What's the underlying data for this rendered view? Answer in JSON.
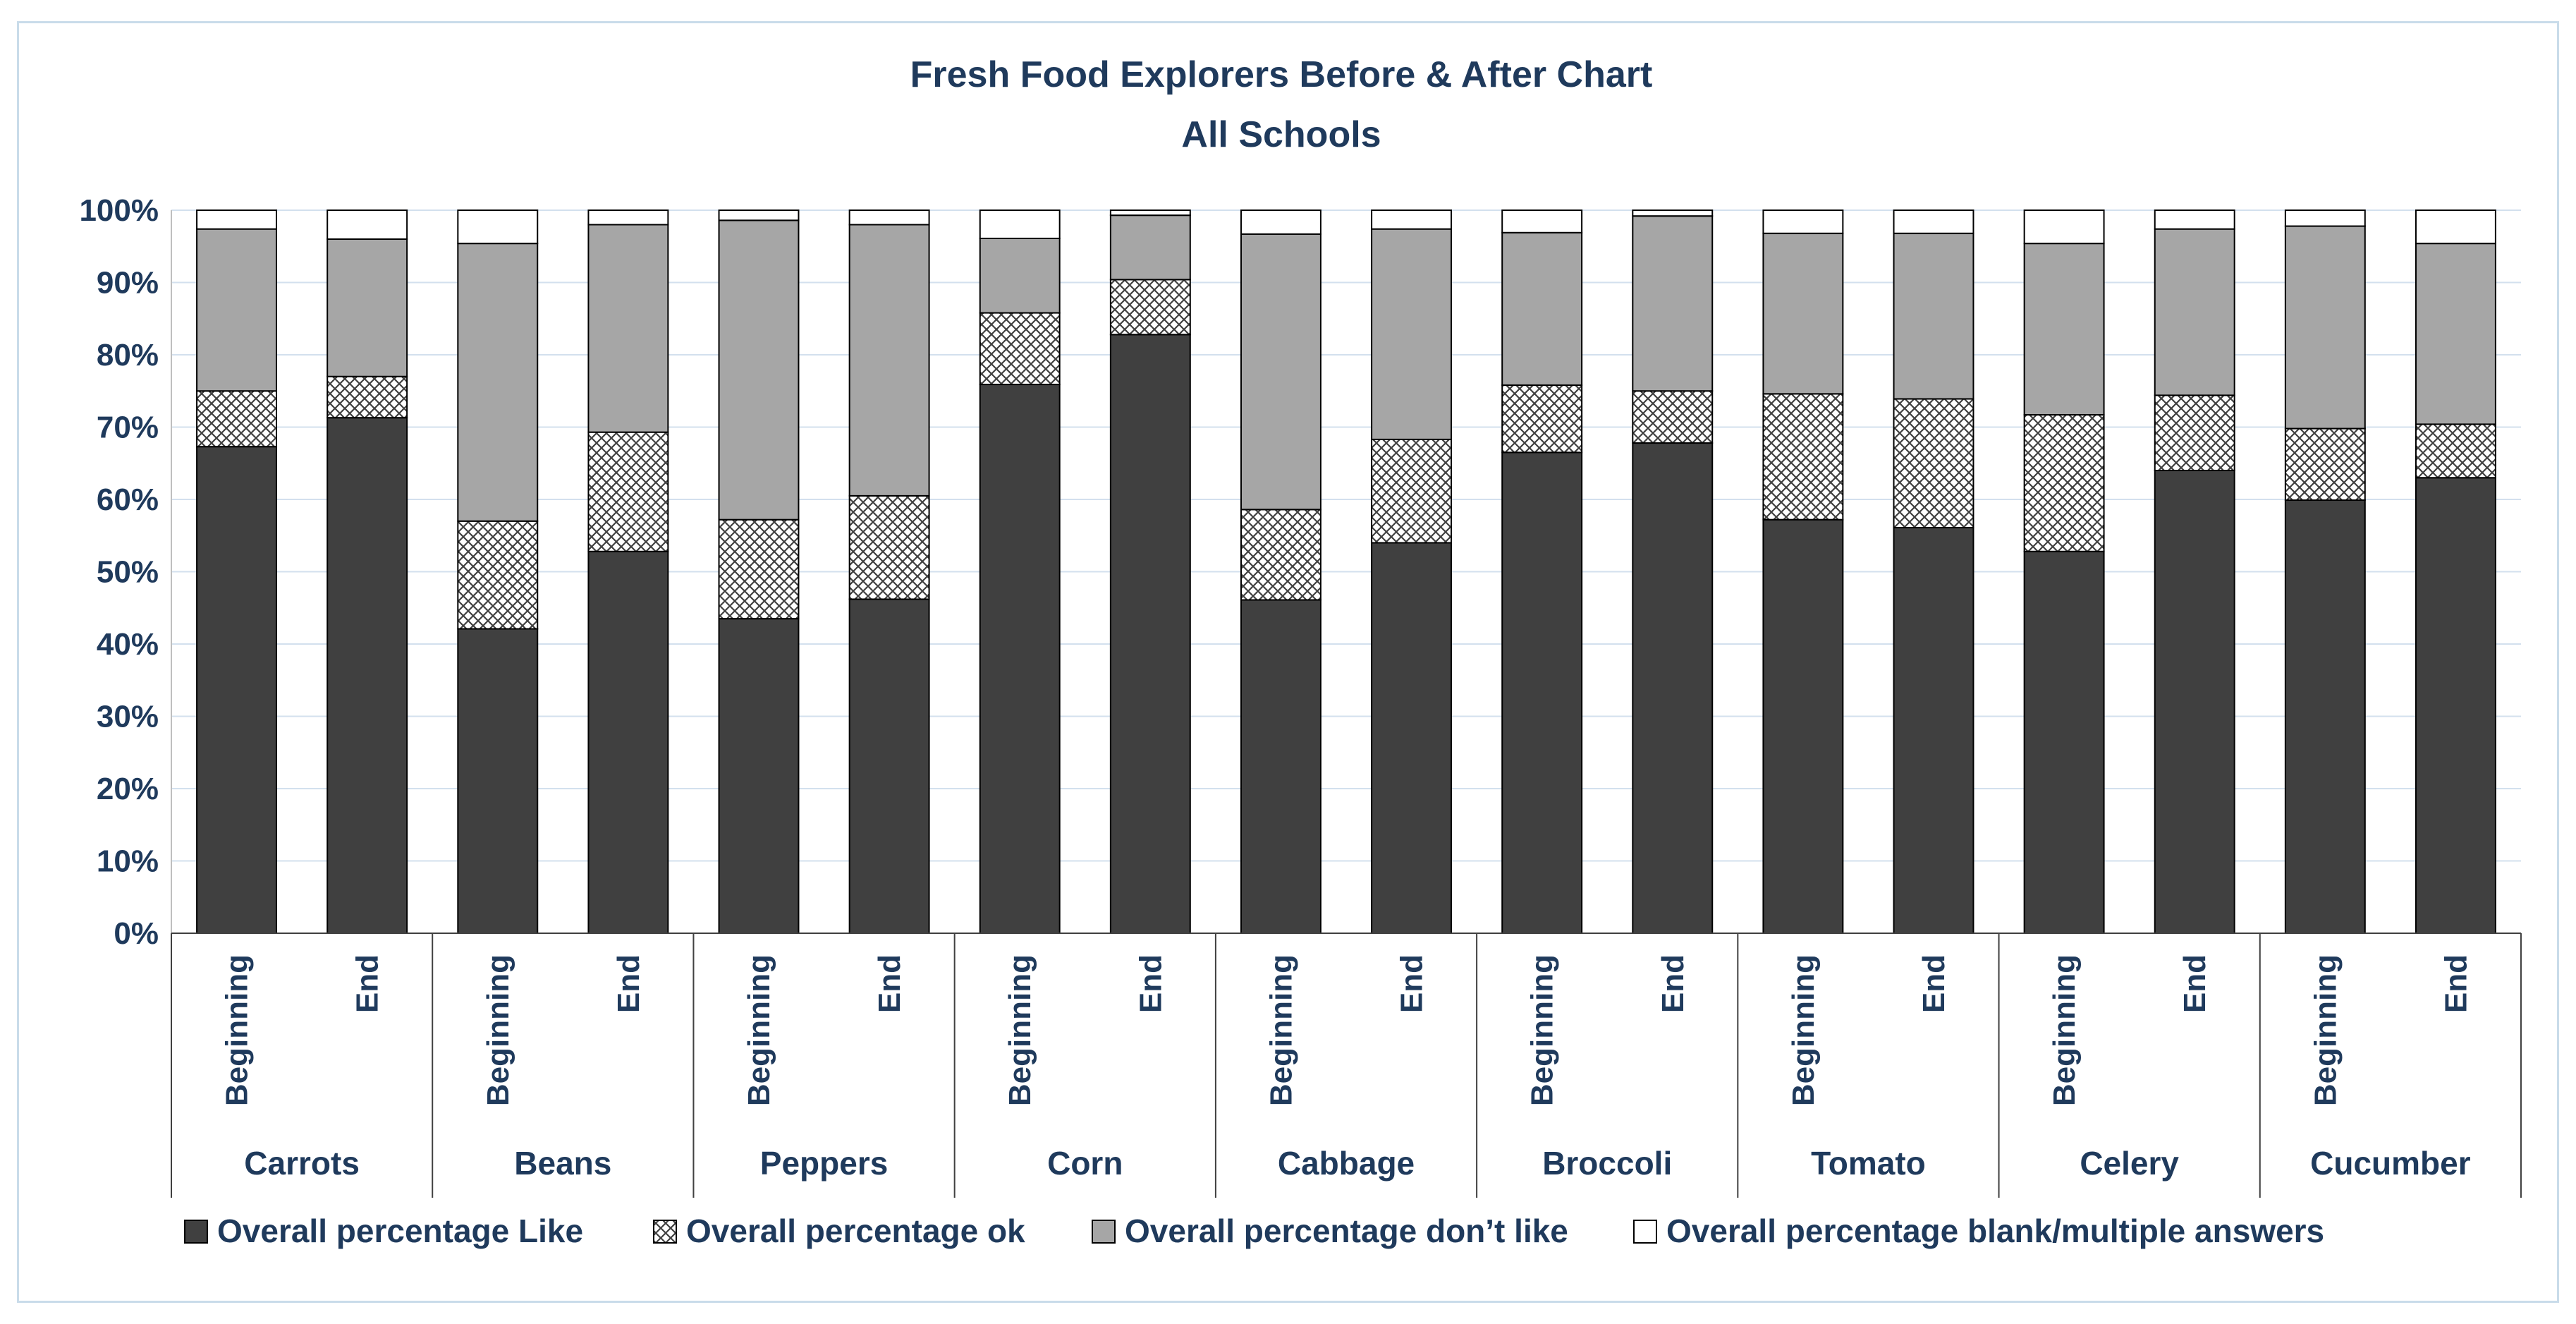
{
  "chart_data": {
    "type": "bar",
    "stacked": true,
    "percent_stacked": true,
    "title": "Fresh Food Explorers Before & After Chart",
    "subtitle": "All Schools",
    "ylim": [
      0,
      100
    ],
    "yticks": [
      "0%",
      "10%",
      "20%",
      "30%",
      "40%",
      "50%",
      "60%",
      "70%",
      "80%",
      "90%",
      "100%"
    ],
    "groups": [
      "Carrots",
      "Beans",
      "Peppers",
      "Corn",
      "Cabbage",
      "Broccoli",
      "Tomato",
      "Celery",
      "Cucumber"
    ],
    "sub_categories": [
      "Beginning",
      "End"
    ],
    "legend_position": "bottom",
    "series": [
      {
        "name": "Overall percentage Like",
        "fill": "#404040",
        "pattern": "solid",
        "values": [
          67.3,
          71.3,
          42.1,
          52.8,
          43.5,
          46.2,
          75.9,
          82.8,
          46.1,
          54.0,
          66.5,
          67.8,
          57.2,
          56.1,
          52.8,
          64.0,
          59.9,
          63.0
        ]
      },
      {
        "name": "Overall percentage ok",
        "fill": "#ffffff",
        "pattern": "crosshatch",
        "values": [
          7.7,
          5.7,
          14.9,
          16.5,
          13.7,
          14.3,
          9.9,
          7.6,
          12.5,
          14.3,
          9.3,
          7.2,
          17.4,
          17.8,
          18.9,
          10.4,
          9.9,
          7.4
        ]
      },
      {
        "name": "Overall percentage don’t like",
        "fill": "#a6a6a6",
        "pattern": "solid",
        "values": [
          22.4,
          19.0,
          38.4,
          28.7,
          41.4,
          37.5,
          10.3,
          8.9,
          38.1,
          29.1,
          21.1,
          24.2,
          22.2,
          22.9,
          23.7,
          23.0,
          28.0,
          25.0
        ]
      },
      {
        "name": "Overall percentage blank/multiple answers",
        "fill": "#ffffff",
        "pattern": "solid",
        "values": [
          2.6,
          4.0,
          4.6,
          2.0,
          1.4,
          2.0,
          3.9,
          0.7,
          3.3,
          2.6,
          3.1,
          0.8,
          3.2,
          3.2,
          4.6,
          2.6,
          2.2,
          4.6
        ]
      }
    ]
  }
}
